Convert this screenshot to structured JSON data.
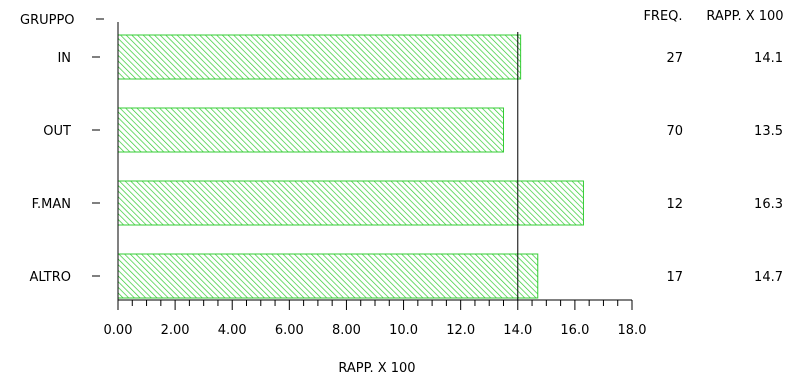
{
  "chart_data": {
    "type": "bar",
    "orientation": "horizontal",
    "group_header": "GRUPPO",
    "categories": [
      "IN",
      "OUT",
      "F.MAN",
      "ALTRO"
    ],
    "values": [
      14.1,
      13.5,
      16.3,
      14.7
    ],
    "freq_header": "FREQ.",
    "rapp_header": "RAPP. X 100",
    "freq": [
      "27",
      "70",
      "12",
      "17"
    ],
    "rapp": [
      "14.1",
      "13.5",
      "16.3",
      "14.7"
    ],
    "xlabel": "RAPP. X 100",
    "xlim": [
      0,
      18
    ],
    "xticks": [
      "0.00",
      "2.00",
      "4.00",
      "6.00",
      "8.00",
      "10.0",
      "12.0",
      "14.0",
      "16.0",
      "18.0"
    ],
    "reference_line": 14.0,
    "bar_color": "#33cc33",
    "bar_fill": "diagonal-hatch",
    "grid": false
  }
}
